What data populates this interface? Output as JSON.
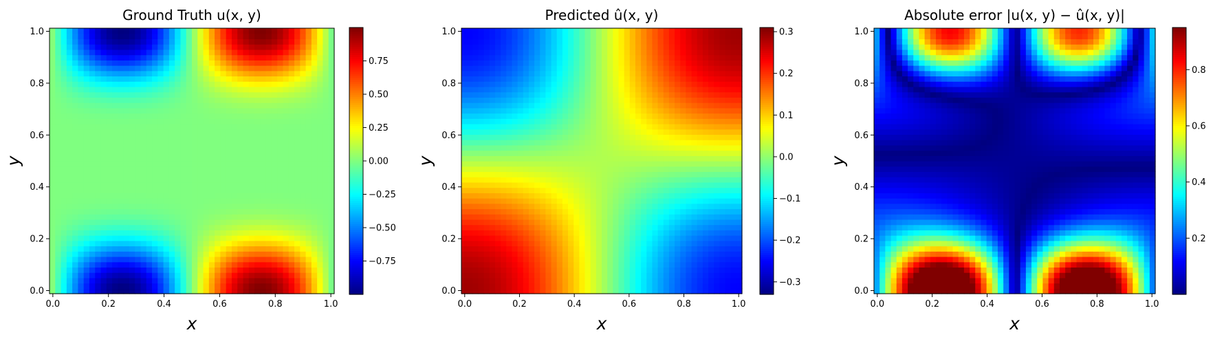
{
  "chart_data": [
    {
      "type": "heatmap",
      "title": "Ground Truth u(x, y)",
      "xlabel": "x",
      "ylabel": "y",
      "xlim": [
        0.0,
        1.0
      ],
      "ylim": [
        0.0,
        1.0
      ],
      "x_ticks": [
        "0.0",
        "0.2",
        "0.4",
        "0.6",
        "0.8",
        "1.0"
      ],
      "y_ticks": [
        "0.0",
        "0.2",
        "0.4",
        "0.6",
        "0.8",
        "1.0"
      ],
      "grid_resolution": [
        50,
        50
      ],
      "field": "ground_truth",
      "colormap": "jet",
      "colorbar": {
        "min": -1.0,
        "max": 1.0,
        "ticks": [
          "0.75",
          "0.50",
          "0.25",
          "0.00",
          "−0.25",
          "−0.50",
          "−0.75"
        ]
      }
    },
    {
      "type": "heatmap",
      "title": "Predicted û(x, y)",
      "xlabel": "x",
      "ylabel": "y",
      "xlim": [
        0.0,
        1.0
      ],
      "ylim": [
        0.0,
        1.0
      ],
      "x_ticks": [
        "0.0",
        "0.2",
        "0.4",
        "0.6",
        "0.8",
        "1.0"
      ],
      "y_ticks": [
        "0.0",
        "0.2",
        "0.4",
        "0.6",
        "0.8",
        "1.0"
      ],
      "grid_resolution": [
        50,
        50
      ],
      "field": "predicted",
      "colormap": "jet",
      "colorbar": {
        "min": -0.33,
        "max": 0.31,
        "ticks": [
          "0.3",
          "0.2",
          "0.1",
          "0.0",
          "−0.1",
          "−0.2",
          "−0.3"
        ]
      }
    },
    {
      "type": "heatmap",
      "title": "Absolute error |u(x, y) − û(x, y)|",
      "xlabel": "x",
      "ylabel": "y",
      "xlim": [
        0.0,
        1.0
      ],
      "ylim": [
        0.0,
        1.0
      ],
      "x_ticks": [
        "0.0",
        "0.2",
        "0.4",
        "0.6",
        "0.8",
        "1.0"
      ],
      "y_ticks": [
        "0.0",
        "0.2",
        "0.4",
        "0.6",
        "0.8",
        "1.0"
      ],
      "grid_resolution": [
        50,
        50
      ],
      "field": "absolute_error",
      "colormap": "jet",
      "colorbar": {
        "min": 0.0,
        "max": 0.95,
        "ticks": [
          "0.8",
          "0.6",
          "0.4",
          "0.2"
        ]
      }
    }
  ]
}
